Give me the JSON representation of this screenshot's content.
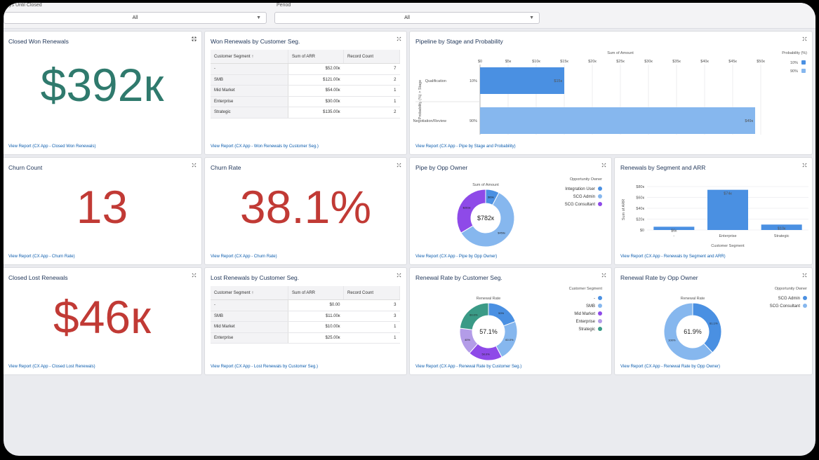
{
  "filters": [
    {
      "label": "ys Until Closed",
      "value": "All"
    },
    {
      "label": "Period",
      "value": "All"
    }
  ],
  "view_link_prefix": "View Report (CX App - ",
  "colors": {
    "green": "#2f7a6d",
    "red": "#c13a35",
    "blue_dark": "#4a90e2",
    "blue_light": "#86b7ee",
    "purple": "#8e4ae8",
    "lavender": "#b39ce8",
    "teal": "#3a9a86"
  },
  "cards": {
    "closed_won": {
      "title": "Closed Won Renewals",
      "value": "$392к",
      "link": "View Report (CX App - Closed Won Renewals)"
    },
    "won_by_seg": {
      "title": "Won Renewals by Customer Seg.",
      "columns": [
        "Customer Segment ↑",
        "Sum of ARR",
        "Record Count"
      ],
      "rows": [
        [
          "-",
          "$52.00к",
          "7"
        ],
        [
          "SMB",
          "$121.00к",
          "2"
        ],
        [
          "Mid Market",
          "$54.00к",
          "1"
        ],
        [
          "Enterprise",
          "$30.00к",
          "1"
        ],
        [
          "Strategic",
          "$135.00к",
          "2"
        ]
      ],
      "link": "View Report (CX App - Won Renewals by Customer Seg.)"
    },
    "pipeline": {
      "title": "Pipeline by Stage and Probability",
      "link": "View Report (CX App - Pipe by Stage and Probability)",
      "chart_data": {
        "type": "bar",
        "orientation": "horizontal",
        "xlabel": "Sum of Amount",
        "ylabel": "Probability (%) > Stage",
        "x_ticks": [
          "$0",
          "$5к",
          "$10к",
          "$15к",
          "$20к",
          "$25к",
          "$30к",
          "$35к",
          "$40к",
          "$45к",
          "$50к"
        ],
        "xlim": [
          0,
          50
        ],
        "legend_title": "Probability (%)",
        "legend": [
          "10%",
          "90%"
        ],
        "categories": [
          "Qualification",
          "Negotiation/Review"
        ],
        "probabilities": [
          "10%",
          "90%"
        ],
        "values": [
          15,
          49
        ],
        "value_labels": [
          "$15к",
          "$49к"
        ],
        "colors": [
          "#4a90e2",
          "#86b7ee"
        ]
      }
    },
    "churn_count": {
      "title": "Churn Count",
      "value": "13",
      "link": "View Report (CX App - Churn Rate)"
    },
    "churn_rate": {
      "title": "Churn Rate",
      "value": "38.1%",
      "link": "View Report (CX App - Churn Rate)"
    },
    "pipe_owner": {
      "title": "Pipe by Opp Owner",
      "link": "View Report (CX App - Pipe by Opp Owner)",
      "chart_data": {
        "type": "pie",
        "donut": true,
        "title": "Sum of Amount",
        "center_label": "$782к",
        "legend_title": "Opportunity Owner",
        "categories": [
          "Integration User",
          "SCG Admin",
          "SCG Consultant"
        ],
        "values": [
          60,
          459,
          263
        ],
        "value_labels": [
          "$60к",
          "$459к",
          "$263к"
        ],
        "colors": [
          "#4a90e2",
          "#86b7ee",
          "#8e4ae8"
        ]
      }
    },
    "seg_arr": {
      "title": "Renewals by Segment and ARR",
      "link": "View Report (CX App - Renewals by Segment and ARR)",
      "chart_data": {
        "type": "bar",
        "xlabel": "Customer Segment",
        "ylabel": "Sum of ARR",
        "categories": [
          "-",
          "Enterprise",
          "Strategic"
        ],
        "values": [
          6,
          74,
          10
        ],
        "value_labels": [
          "$6к",
          "$74к",
          "$10к"
        ],
        "y_ticks": [
          "$0",
          "$20к",
          "$40к",
          "$60к",
          "$80к"
        ],
        "ylim": [
          0,
          80
        ]
      }
    },
    "closed_lost": {
      "title": "Closed Lost Renewals",
      "value": "$46к",
      "link": "View Report (CX App - Closed Lost Renewals)"
    },
    "lost_by_seg": {
      "title": "Lost Renewals by Customer Seg.",
      "columns": [
        "Customer Segment ↑",
        "Sum of ARR",
        "Record Count"
      ],
      "rows": [
        [
          "-",
          "$0.00",
          "3"
        ],
        [
          "SMB",
          "$11.00к",
          "3"
        ],
        [
          "Mid Market",
          "$10.00к",
          "1"
        ],
        [
          "Enterprise",
          "$25.00к",
          "1"
        ]
      ],
      "link": "View Report (CX App - Lost Renewals by Customer Seg.)"
    },
    "rate_seg": {
      "title": "Renewal Rate by Customer Seg.",
      "link": "View Report (CX App - Renewal Rate by Customer Seg.)",
      "chart_data": {
        "type": "pie",
        "donut": true,
        "title": "Renewal Rate",
        "center_label": "57.1%",
        "legend_title": "Customer Segment",
        "categories": [
          "-",
          "SMB",
          "Mid Market",
          "Enterprise",
          "Strategic"
        ],
        "values": [
          50,
          60,
          50,
          40,
          60
        ],
        "value_labels": [
          "50%",
          "60.0%",
          "50.0%",
          "40%",
          "60.0%"
        ],
        "colors": [
          "#4a90e2",
          "#86b7ee",
          "#8e4ae8",
          "#b39ce8",
          "#3a9a86"
        ]
      }
    },
    "rate_owner": {
      "title": "Renewal Rate by Opp Owner",
      "link": "View Report (CX App - Renewal Rate by Opp Owner)",
      "chart_data": {
        "type": "pie",
        "donut": true,
        "title": "Renewal Rate",
        "center_label": "61.9%",
        "legend_title": "Opportunity Owner",
        "categories": [
          "SCG Admin",
          "SCG Consultant"
        ],
        "values": [
          61.1,
          100
        ],
        "value_labels": [
          "61.1%",
          "100%"
        ],
        "colors": [
          "#4a90e2",
          "#86b7ee"
        ]
      }
    }
  }
}
